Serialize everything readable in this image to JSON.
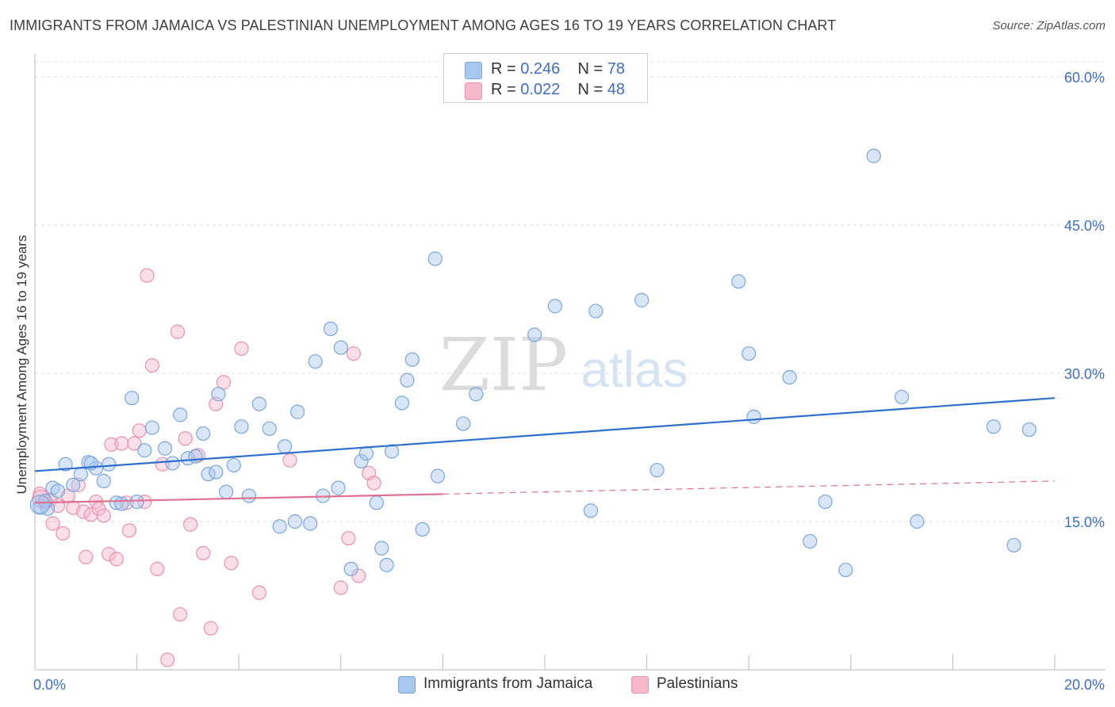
{
  "title": "IMMIGRANTS FROM JAMAICA VS PALESTINIAN UNEMPLOYMENT AMONG AGES 16 TO 19 YEARS CORRELATION CHART",
  "source": "Source: ZipAtlas.com",
  "watermark": {
    "part1": "ZIP",
    "part2": "atlas"
  },
  "colors": {
    "blue_fill": "#a9c8f0",
    "blue_stroke": "#7aa5dd",
    "blue_line": "#2f6fd0",
    "pink_fill": "#f6b9cc",
    "pink_stroke": "#e991ad",
    "pink_line": "#e0708f",
    "axis_text": "#3d6fc8"
  },
  "legend": {
    "rows": [
      {
        "r_label": "R =",
        "r_value": "0.246",
        "n_label": "N =",
        "n_value": "78",
        "series": "blue"
      },
      {
        "r_label": "R =",
        "r_value": "0.022",
        "n_label": "N =",
        "n_value": "48",
        "series": "pink"
      }
    ]
  },
  "bottom_legend": [
    {
      "label": "Immigrants from Jamaica",
      "series": "blue"
    },
    {
      "label": "Palestinians",
      "series": "pink"
    }
  ],
  "chart_data": {
    "type": "scatter",
    "title": "IMMIGRANTS FROM JAMAICA VS PALESTINIAN UNEMPLOYMENT AMONG AGES 16 TO 19 YEARS CORRELATION CHART",
    "xlabel": "",
    "ylabel": "Unemployment Among Ages 16 to 19 years",
    "xlim": [
      0,
      20
    ],
    "ylim": [
      0,
      60
    ],
    "x_tick_labels": [
      "0.0%",
      "20.0%"
    ],
    "y_ticks": [
      15,
      30,
      45,
      60
    ],
    "y_tick_labels": [
      "15.0%",
      "30.0%",
      "45.0%",
      "60.0%"
    ],
    "series": [
      {
        "name": "Immigrants from Jamaica",
        "color": "blue",
        "trend": {
          "x0": 0,
          "y0": 20.1,
          "x1": 20,
          "y1": 27.5,
          "dashed_from": null
        },
        "points": [
          [
            0.1,
            16.5
          ],
          [
            0.2,
            17.1
          ],
          [
            0.25,
            16.3
          ],
          [
            0.35,
            18.4
          ],
          [
            0.45,
            18.1
          ],
          [
            0.6,
            20.8
          ],
          [
            0.75,
            18.7
          ],
          [
            0.9,
            19.8
          ],
          [
            1.05,
            21.0
          ],
          [
            1.2,
            20.4
          ],
          [
            1.35,
            19.1
          ],
          [
            1.45,
            20.8
          ],
          [
            1.6,
            16.9
          ],
          [
            1.7,
            16.8
          ],
          [
            2.0,
            17.0
          ],
          [
            1.9,
            27.5
          ],
          [
            2.15,
            22.2
          ],
          [
            2.3,
            24.5
          ],
          [
            2.55,
            22.4
          ],
          [
            2.7,
            20.9
          ],
          [
            2.85,
            25.8
          ],
          [
            3.0,
            21.4
          ],
          [
            3.15,
            21.6
          ],
          [
            3.3,
            23.9
          ],
          [
            3.4,
            19.8
          ],
          [
            3.55,
            20.0
          ],
          [
            3.6,
            27.9
          ],
          [
            3.75,
            18.0
          ],
          [
            3.9,
            20.7
          ],
          [
            4.05,
            24.6
          ],
          [
            4.2,
            17.6
          ],
          [
            4.4,
            26.9
          ],
          [
            4.6,
            24.4
          ],
          [
            4.8,
            14.5
          ],
          [
            4.9,
            22.6
          ],
          [
            5.1,
            15.0
          ],
          [
            5.15,
            26.1
          ],
          [
            5.4,
            14.8
          ],
          [
            5.5,
            31.2
          ],
          [
            5.65,
            17.6
          ],
          [
            5.8,
            34.5
          ],
          [
            5.95,
            18.4
          ],
          [
            6.0,
            32.6
          ],
          [
            6.2,
            10.2
          ],
          [
            6.4,
            21.1
          ],
          [
            6.5,
            21.9
          ],
          [
            6.7,
            16.9
          ],
          [
            6.8,
            12.3
          ],
          [
            7.0,
            22.1
          ],
          [
            6.9,
            10.6
          ],
          [
            7.2,
            27.0
          ],
          [
            7.3,
            29.3
          ],
          [
            7.4,
            31.4
          ],
          [
            7.6,
            14.2
          ],
          [
            7.85,
            41.6
          ],
          [
            7.9,
            19.6
          ],
          [
            8.4,
            24.9
          ],
          [
            8.65,
            27.9
          ],
          [
            9.8,
            33.9
          ],
          [
            10.2,
            36.8
          ],
          [
            10.9,
            16.1
          ],
          [
            11.0,
            36.3
          ],
          [
            11.9,
            37.4
          ],
          [
            12.2,
            20.2
          ],
          [
            13.8,
            39.3
          ],
          [
            14.0,
            32.0
          ],
          [
            14.1,
            25.6
          ],
          [
            14.8,
            29.6
          ],
          [
            15.2,
            13.0
          ],
          [
            15.5,
            17.0
          ],
          [
            15.9,
            10.1
          ],
          [
            16.45,
            52.0
          ],
          [
            17.0,
            27.6
          ],
          [
            17.3,
            15.0
          ],
          [
            18.8,
            24.6
          ],
          [
            19.2,
            12.6
          ],
          [
            19.5,
            24.3
          ],
          [
            1.1,
            20.9
          ]
        ]
      },
      {
        "name": "Palestinians",
        "color": "pink",
        "trend": {
          "x0": 0,
          "y0": 16.9,
          "x1": 20,
          "y1": 19.1,
          "dashed_from": 8.0
        },
        "points": [
          [
            0.1,
            17.8
          ],
          [
            0.2,
            16.9
          ],
          [
            0.3,
            17.2
          ],
          [
            0.35,
            14.8
          ],
          [
            0.45,
            16.6
          ],
          [
            0.55,
            13.8
          ],
          [
            0.65,
            17.6
          ],
          [
            0.75,
            16.4
          ],
          [
            0.85,
            18.7
          ],
          [
            0.95,
            16.0
          ],
          [
            1.0,
            11.4
          ],
          [
            1.1,
            15.7
          ],
          [
            1.2,
            17.0
          ],
          [
            1.25,
            16.3
          ],
          [
            1.35,
            15.6
          ],
          [
            1.5,
            22.8
          ],
          [
            1.45,
            11.7
          ],
          [
            1.6,
            11.2
          ],
          [
            1.7,
            22.9
          ],
          [
            1.8,
            16.9
          ],
          [
            1.85,
            14.1
          ],
          [
            1.95,
            22.9
          ],
          [
            2.05,
            24.2
          ],
          [
            2.15,
            17.0
          ],
          [
            2.2,
            39.9
          ],
          [
            2.3,
            30.8
          ],
          [
            2.4,
            10.2
          ],
          [
            2.5,
            20.8
          ],
          [
            2.6,
            1.0
          ],
          [
            2.8,
            34.2
          ],
          [
            2.85,
            5.6
          ],
          [
            2.95,
            23.4
          ],
          [
            3.05,
            14.7
          ],
          [
            3.2,
            21.7
          ],
          [
            3.3,
            11.8
          ],
          [
            3.45,
            4.2
          ],
          [
            3.55,
            26.9
          ],
          [
            3.7,
            29.1
          ],
          [
            3.85,
            10.8
          ],
          [
            4.05,
            32.5
          ],
          [
            4.4,
            7.8
          ],
          [
            5.0,
            21.2
          ],
          [
            6.0,
            8.3
          ],
          [
            6.15,
            13.3
          ],
          [
            6.25,
            32.0
          ],
          [
            6.35,
            9.5
          ],
          [
            6.55,
            19.9
          ],
          [
            6.65,
            18.9
          ]
        ]
      }
    ]
  }
}
